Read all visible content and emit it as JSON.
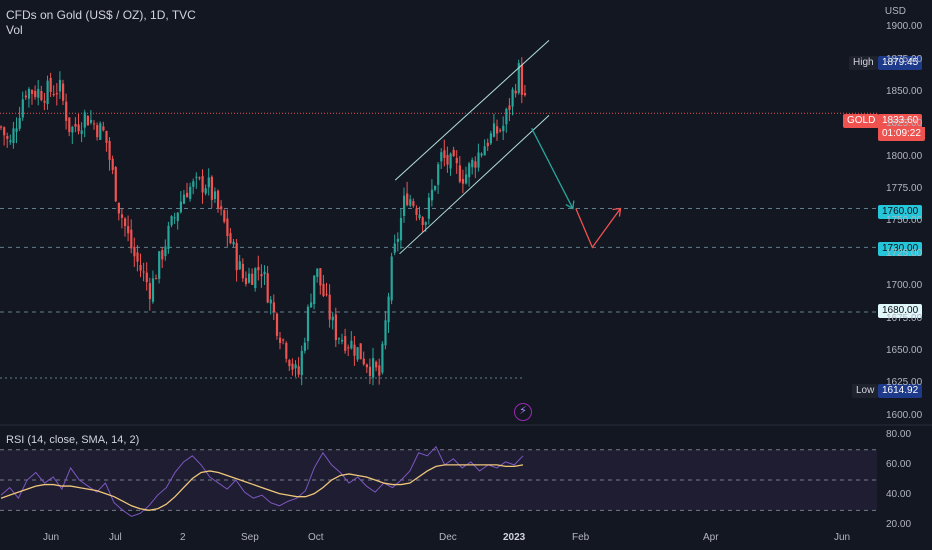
{
  "legend": {
    "title": "CFDs on Gold (US$ / OZ), 1D, TVC",
    "vol": "Vol"
  },
  "rsi_legend": "RSI (14, close, SMA, 14, 2)",
  "currency": "USD",
  "flash_icon": "lightning-icon",
  "colors": {
    "background": "#131722",
    "up": "#26a69a",
    "down": "#ef5350",
    "rsi": "#7e57c2",
    "rsi_ma": "#f0c77a",
    "accent": "#2962ff"
  },
  "price_tags": {
    "high_label": "High",
    "high_value": "1879.45",
    "gold_label": "GOLD",
    "gold_value": "1833.60",
    "gold_countdown": "01:09:22",
    "level_1760": "1760.00",
    "level_1730": "1730.00",
    "level_1680": "1680.00",
    "low_label": "Low",
    "low_value": "1614.92"
  },
  "chart_data": [
    {
      "type": "candlestick",
      "title": "CFDs on Gold (US$ / OZ), 1D, TVC",
      "y_ticks": [
        "1900.00",
        "1875.00",
        "1850.00",
        "1825.00",
        "1800.00",
        "1775.00",
        "1750.00",
        "1725.00",
        "1700.00",
        "1675.00",
        "1650.00",
        "1625.00",
        "1600.00"
      ],
      "x_ticks": [
        "Jun",
        "Jul",
        "2",
        "Sep",
        "Oct",
        "Dec",
        "2023",
        "Feb",
        "Apr",
        "Jun"
      ],
      "ylim": [
        1595,
        1915
      ],
      "close_path": [
        [
          "2022-05-12",
          1823
        ],
        [
          "2022-05-16",
          1808
        ],
        [
          "2022-05-23",
          1852
        ],
        [
          "2022-06-01",
          1850
        ],
        [
          "2022-06-08",
          1853
        ],
        [
          "2022-06-13",
          1820
        ],
        [
          "2022-06-20",
          1832
        ],
        [
          "2022-06-29",
          1817
        ],
        [
          "2022-07-05",
          1764
        ],
        [
          "2022-07-12",
          1725
        ],
        [
          "2022-07-20",
          1697
        ],
        [
          "2022-07-27",
          1735
        ],
        [
          "2022-08-05",
          1775
        ],
        [
          "2022-08-15",
          1780
        ],
        [
          "2022-08-23",
          1748
        ],
        [
          "2022-09-01",
          1705
        ],
        [
          "2022-09-09",
          1715
        ],
        [
          "2022-09-16",
          1672
        ],
        [
          "2022-09-26",
          1628
        ],
        [
          "2022-10-04",
          1715
        ],
        [
          "2022-10-13",
          1665
        ],
        [
          "2022-10-21",
          1655
        ],
        [
          "2022-11-03",
          1630
        ],
        [
          "2022-11-08",
          1712
        ],
        [
          "2022-11-15",
          1772
        ],
        [
          "2022-11-24",
          1752
        ],
        [
          "2022-12-01",
          1800
        ],
        [
          "2022-12-12",
          1785
        ],
        [
          "2022-12-22",
          1812
        ],
        [
          "2022-12-30",
          1824
        ],
        [
          "2023-01-06",
          1866
        ],
        [
          "2023-01-10",
          1833.6
        ]
      ],
      "horizontal_levels": [
        1833.6,
        1760,
        1730,
        1680
      ],
      "channel": {
        "upper": [
          [
            "2022-11-10",
            1782
          ],
          [
            "2023-01-20",
            1890
          ]
        ],
        "lower": [
          [
            "2022-11-12",
            1725
          ],
          [
            "2023-01-20",
            1832
          ]
        ]
      },
      "projection": [
        [
          "2023-01-12",
          1822
        ],
        [
          "2023-01-31",
          1760
        ],
        [
          "2023-02-09",
          1730
        ],
        [
          "2023-02-22",
          1760
        ]
      ],
      "high": 1879.45,
      "low": 1614.92,
      "last": 1833.6
    },
    {
      "type": "line",
      "title": "RSI (14, close, SMA, 14, 2)",
      "y_ticks": [
        "80.00",
        "60.00",
        "40.00",
        "20.00"
      ],
      "ylim": [
        17,
        87
      ],
      "bands": [
        70,
        50,
        30
      ],
      "series": [
        {
          "name": "RSI",
          "values": [
            40,
            45,
            38,
            50,
            55,
            48,
            52,
            44,
            58,
            50,
            46,
            42,
            48,
            35,
            30,
            26,
            28,
            33,
            40,
            45,
            55,
            62,
            66,
            60,
            52,
            48,
            44,
            50,
            42,
            38,
            40,
            35,
            33,
            36,
            38,
            43,
            58,
            68,
            60,
            55,
            48,
            52,
            46,
            42,
            48,
            45,
            50,
            56,
            68,
            66,
            72,
            60,
            64,
            58,
            62,
            56,
            60,
            58,
            62,
            60,
            66
          ]
        },
        {
          "name": "RSI-based MA",
          "values": [
            38,
            40,
            42,
            44,
            46,
            47,
            47,
            46,
            46,
            45,
            44,
            43,
            41,
            39,
            36,
            33,
            31,
            30,
            31,
            34,
            39,
            45,
            51,
            55,
            56,
            55,
            53,
            51,
            49,
            47,
            45,
            43,
            41,
            40,
            39,
            39,
            41,
            45,
            50,
            53,
            54,
            53,
            52,
            50,
            48,
            47,
            47,
            48,
            52,
            56,
            59,
            60,
            60,
            60,
            60,
            60,
            60,
            60,
            59,
            59,
            60
          ]
        }
      ]
    }
  ]
}
